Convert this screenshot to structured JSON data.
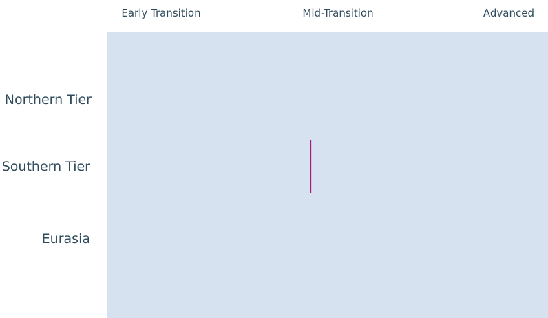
{
  "columns": [
    "Early Transition",
    "Mid-Transition",
    "Advanced"
  ],
  "rows": [
    "Northern Tier",
    "Southern Tier",
    "Eurasia"
  ]
}
